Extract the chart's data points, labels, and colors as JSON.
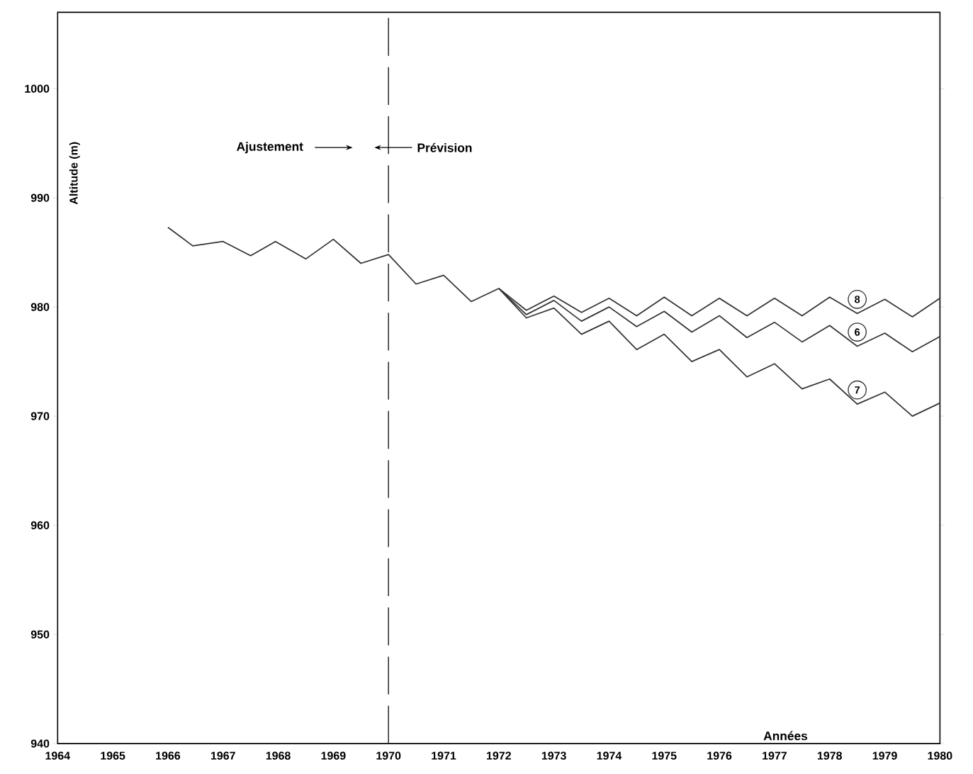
{
  "chart_data": {
    "type": "line",
    "xlabel": "Années",
    "ylabel": "Altitude (m)",
    "xlim": [
      1964,
      1980
    ],
    "ylim": [
      940,
      1007
    ],
    "xticks": [
      1964,
      1965,
      1966,
      1967,
      1968,
      1969,
      1970,
      1971,
      1972,
      1973,
      1974,
      1975,
      1976,
      1977,
      1978,
      1979,
      1980
    ],
    "yticks": [
      940,
      950,
      960,
      970,
      980,
      990,
      1000
    ],
    "grid": false,
    "legend": "right",
    "marker": "none",
    "line_style": "solid",
    "ref_lines": [
      {
        "axis": "x",
        "value": 1970,
        "line_style": "dashed",
        "color": "#333333"
      }
    ],
    "annotations": [
      "Ajustement",
      "Prévision"
    ],
    "series": [
      {
        "color": "#333333",
        "x": [
          1966.0,
          1966.45,
          1967.0,
          1967.5,
          1967.95,
          1968.5,
          1969.0,
          1969.5,
          1970.0,
          1970.5,
          1971.0,
          1971.5,
          1972.0
        ],
        "values": [
          987.3,
          985.6,
          986.0,
          984.7,
          986.0,
          984.4,
          986.2,
          984.0,
          984.8,
          982.1,
          982.9,
          980.5,
          981.7
        ]
      },
      {
        "name": "8",
        "color": "#333333",
        "x": [
          1972.0,
          1972.5,
          1973.0,
          1973.5,
          1974.0,
          1974.5,
          1975.0,
          1975.5,
          1976.0,
          1976.5,
          1977.0,
          1977.5,
          1978.0,
          1978.5,
          1979.0,
          1979.5,
          1980.0
        ],
        "values": [
          981.7,
          979.7,
          981.0,
          979.5,
          980.8,
          979.2,
          980.9,
          979.2,
          980.8,
          979.2,
          980.8,
          979.2,
          980.9,
          979.4,
          980.7,
          979.1,
          980.8
        ]
      },
      {
        "name": "6",
        "color": "#333333",
        "x": [
          1972.0,
          1972.5,
          1973.0,
          1973.5,
          1974.0,
          1974.5,
          1975.0,
          1975.5,
          1976.0,
          1976.5,
          1977.0,
          1977.5,
          1978.0,
          1978.5,
          1979.0,
          1979.5,
          1980.0
        ],
        "values": [
          981.7,
          979.3,
          980.6,
          978.7,
          980.0,
          978.2,
          979.6,
          977.7,
          979.2,
          977.2,
          978.6,
          976.8,
          978.3,
          976.4,
          977.6,
          975.9,
          977.3
        ]
      },
      {
        "name": "7",
        "color": "#333333",
        "x": [
          1972.0,
          1972.5,
          1973.0,
          1973.5,
          1974.0,
          1974.5,
          1975.0,
          1975.5,
          1976.0,
          1976.5,
          1977.0,
          1977.5,
          1978.0,
          1978.5,
          1979.0,
          1979.5,
          1980.0
        ],
        "values": [
          981.7,
          979.0,
          979.9,
          977.5,
          978.7,
          976.1,
          977.5,
          975.0,
          976.1,
          973.6,
          974.8,
          972.5,
          973.4,
          971.1,
          972.2,
          970.0,
          971.2
        ]
      }
    ]
  }
}
